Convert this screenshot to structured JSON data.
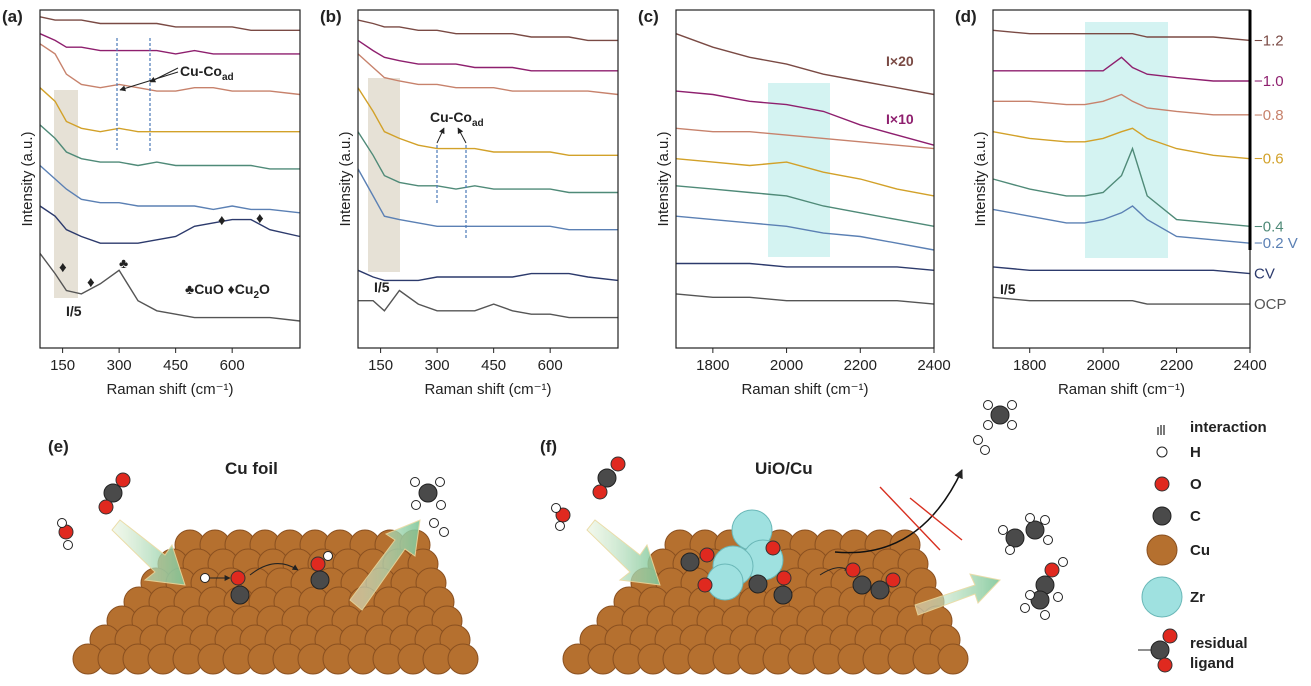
{
  "chart_data": [
    {
      "type": "line",
      "label": "(a)",
      "xlabel": "Raman shift (cm⁻¹)",
      "ylabel": "Intensity (a.u.)",
      "x": [
        90,
        130,
        160,
        200,
        250,
        300,
        350,
        400,
        450,
        500,
        550,
        600,
        650,
        700,
        780
      ],
      "xlim": [
        90,
        780
      ],
      "xticks": [
        150,
        300,
        450,
        600
      ],
      "ylim": [
        0,
        100
      ],
      "series": [
        {
          "color": "#7a4a44",
          "values": [
            98,
            97,
            97,
            97,
            96,
            96,
            96,
            96,
            95,
            95,
            95,
            95,
            94,
            94,
            94
          ]
        },
        {
          "color": "#8e1f6e",
          "values": [
            93,
            91,
            89,
            89,
            88,
            88,
            88,
            88,
            87,
            88,
            87,
            87,
            87,
            87,
            87
          ]
        },
        {
          "color": "#c7826c",
          "values": [
            90,
            87,
            81,
            78,
            77,
            78,
            77,
            76,
            76,
            77,
            77,
            76,
            76,
            76,
            75
          ]
        },
        {
          "color": "#d2a129",
          "values": [
            77,
            73,
            67,
            65,
            64,
            65,
            64,
            64,
            64,
            64,
            64,
            64,
            64,
            64,
            64
          ]
        },
        {
          "color": "#4f8a78",
          "values": [
            66,
            62,
            58,
            56,
            55,
            55,
            54,
            55,
            54,
            54,
            54,
            54,
            54,
            53,
            53
          ]
        },
        {
          "color": "#5b80b4",
          "values": [
            54,
            50,
            47,
            44,
            43,
            43,
            42,
            42,
            42,
            42,
            41,
            42,
            41,
            41,
            40
          ]
        },
        {
          "color": "#2c3a6c",
          "values": [
            42,
            39,
            35,
            33,
            31,
            31,
            31,
            32,
            33,
            36,
            37,
            38,
            38,
            35,
            33
          ]
        },
        {
          "color": "#555555",
          "values": [
            28,
            22,
            17,
            16,
            19,
            23,
            14,
            11,
            10,
            9,
            9,
            9,
            9,
            9,
            8
          ]
        }
      ],
      "annotations": [
        {
          "text": "Cu-Co",
          "sub": "ad"
        },
        "I/5",
        "♣",
        "♦",
        "♦",
        "♦",
        "♦",
        {
          "text": "♣CuO ♦Cu",
          "sub": "2",
          "tail": "O"
        }
      ]
    },
    {
      "type": "line",
      "label": "(b)",
      "xlabel": "Raman shift (cm⁻¹)",
      "ylabel": "Intensity (a.u.)",
      "x": [
        90,
        130,
        160,
        200,
        250,
        300,
        350,
        400,
        450,
        500,
        550,
        600,
        650,
        700,
        780
      ],
      "xlim": [
        90,
        780
      ],
      "xticks": [
        150,
        300,
        450,
        600
      ],
      "ylim": [
        0,
        100
      ],
      "series": [
        {
          "color": "#7a4a44",
          "values": [
            97,
            96,
            95,
            95,
            94,
            94,
            93,
            93,
            93,
            93,
            92,
            92,
            92,
            91,
            91
          ]
        },
        {
          "color": "#8e1f6e",
          "values": [
            91,
            88,
            86,
            85,
            84,
            84,
            84,
            83,
            83,
            83,
            82,
            82,
            82,
            82,
            82
          ]
        },
        {
          "color": "#c7826c",
          "values": [
            87,
            83,
            80,
            79,
            78,
            78,
            77,
            77,
            77,
            76,
            76,
            76,
            76,
            76,
            75
          ]
        },
        {
          "color": "#d2a129",
          "values": [
            77,
            70,
            64,
            62,
            60,
            59,
            59,
            59,
            58,
            58,
            58,
            58,
            57,
            57,
            57
          ]
        },
        {
          "color": "#4f8a78",
          "values": [
            64,
            57,
            51,
            49,
            48,
            48,
            47,
            48,
            47,
            47,
            47,
            47,
            46,
            46,
            46
          ]
        },
        {
          "color": "#5b80b4",
          "values": [
            53,
            45,
            39,
            38,
            37,
            36,
            36,
            36,
            36,
            36,
            36,
            36,
            35,
            35,
            35
          ]
        },
        {
          "color": "#2c3a6c",
          "values": [
            23,
            21,
            20,
            20,
            20,
            21,
            21,
            21,
            21,
            21,
            22,
            22,
            22,
            21,
            20
          ]
        },
        {
          "color": "#555555",
          "values": [
            14,
            14,
            11,
            17,
            13,
            11,
            11,
            11,
            13,
            11,
            10,
            10,
            9,
            9,
            9
          ]
        }
      ],
      "annotations": [
        {
          "text": "Cu-Co",
          "sub": "ad"
        },
        "I/5"
      ]
    },
    {
      "type": "line",
      "label": "(c)",
      "xlabel": "Raman shift (cm⁻¹)",
      "ylabel": "Intensity (a.u.)",
      "x": [
        1700,
        1800,
        1900,
        2000,
        2100,
        2200,
        2300,
        2400
      ],
      "xlim": [
        1700,
        2400
      ],
      "xticks": [
        1800,
        2000,
        2200,
        2400
      ],
      "ylim": [
        0,
        100
      ],
      "series": [
        {
          "color": "#7a4a44",
          "values": [
            93,
            89,
            86,
            84,
            81,
            79,
            77,
            75
          ]
        },
        {
          "color": "#8e1f6e",
          "values": [
            76,
            75,
            73,
            72,
            70,
            66,
            63,
            60
          ]
        },
        {
          "color": "#c7826c",
          "values": [
            65,
            64,
            64,
            63,
            62,
            61,
            60,
            59
          ]
        },
        {
          "color": "#d2a129",
          "values": [
            56,
            55,
            54,
            55,
            52,
            50,
            47,
            45
          ]
        },
        {
          "color": "#4f8a78",
          "values": [
            48,
            47,
            46,
            45,
            42,
            40,
            38,
            36
          ]
        },
        {
          "color": "#5b80b4",
          "values": [
            39,
            38,
            37,
            36,
            34,
            33,
            31,
            29
          ]
        },
        {
          "color": "#2c3a6c",
          "values": [
            25,
            25,
            25,
            24,
            24,
            24,
            24,
            23
          ]
        },
        {
          "color": "#555555",
          "values": [
            16,
            15,
            15,
            14,
            14,
            14,
            14,
            13
          ]
        }
      ],
      "annotations": [
        "I×20",
        "I×10"
      ]
    },
    {
      "type": "line",
      "label": "(d)",
      "xlabel": "Raman shift (cm⁻¹)",
      "ylabel": "Intensity (a.u.)",
      "x": [
        1700,
        1800,
        1900,
        1950,
        2000,
        2050,
        2080,
        2120,
        2200,
        2300,
        2400
      ],
      "xlim": [
        1700,
        2400
      ],
      "xticks": [
        1800,
        2000,
        2200,
        2400
      ],
      "ylim": [
        0,
        100
      ],
      "series": [
        {
          "name": "−1.2",
          "color": "#7a4a44",
          "values": [
            94,
            93,
            93,
            93,
            93,
            93,
            93,
            92,
            92,
            92,
            91
          ]
        },
        {
          "name": "−1.0",
          "color": "#8e1f6e",
          "values": [
            82,
            82,
            82,
            82,
            82,
            86,
            83,
            81,
            80,
            79,
            79
          ]
        },
        {
          "name": "−0.8",
          "color": "#c7826c",
          "values": [
            73,
            73,
            72,
            72,
            73,
            75,
            73,
            71,
            70,
            69,
            69
          ]
        },
        {
          "name": "−0.6",
          "color": "#d2a129",
          "values": [
            64,
            62,
            61,
            61,
            62,
            64,
            65,
            62,
            59,
            57,
            56
          ]
        },
        {
          "name": "−0.4",
          "color": "#4f8a78",
          "values": [
            50,
            47,
            45,
            45,
            46,
            51,
            59,
            45,
            38,
            37,
            36
          ]
        },
        {
          "name": "−0.2 V",
          "color": "#5b80b4",
          "values": [
            41,
            39,
            37,
            37,
            38,
            40,
            42,
            38,
            33,
            32,
            31
          ]
        },
        {
          "name": "CV",
          "color": "#2c3a6c",
          "values": [
            24,
            23,
            23,
            23,
            23,
            23,
            23,
            23,
            23,
            23,
            22
          ]
        },
        {
          "name": "OCP",
          "color": "#555555",
          "values": [
            15,
            14,
            14,
            14,
            14,
            14,
            14,
            13,
            13,
            13,
            13
          ]
        }
      ],
      "annotations": [
        "I/5"
      ]
    }
  ],
  "schematics": [
    {
      "label": "(e)",
      "title": "Cu foil"
    },
    {
      "label": "(f)",
      "title": "UiO/Cu"
    }
  ],
  "legend": [
    "interaction",
    "H",
    "O",
    "C",
    "Cu",
    "Zr"
  ],
  "legend_ligand": [
    "residual",
    "ligand"
  ]
}
